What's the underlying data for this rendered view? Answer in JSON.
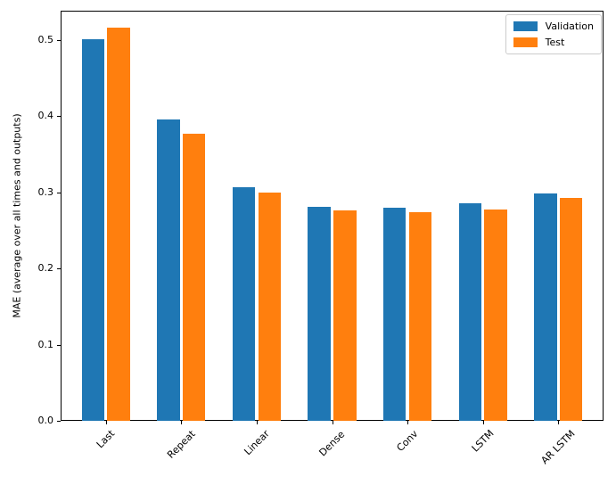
{
  "figure": {
    "background": "#ffffff",
    "axis_color": "#000000"
  },
  "chart_data": {
    "type": "bar",
    "title": "",
    "xlabel": "",
    "ylabel": "MAE (average over all times and outputs)",
    "categories": [
      "Last",
      "Repeat",
      "Linear",
      "Dense",
      "Conv",
      "LSTM",
      "AR LSTM"
    ],
    "series": [
      {
        "name": "Validation",
        "color": "#1f77b4",
        "values": [
          0.501,
          0.395,
          0.306,
          0.281,
          0.28,
          0.286,
          0.298
        ]
      },
      {
        "name": "Test",
        "color": "#ff7f0e",
        "values": [
          0.516,
          0.377,
          0.299,
          0.276,
          0.274,
          0.277,
          0.292
        ]
      }
    ],
    "yticks": [
      0.0,
      0.1,
      0.2,
      0.3,
      0.4,
      0.5
    ],
    "ylim": [
      0,
      0.538
    ],
    "xtick_rotation": 45,
    "grid": false,
    "bar_width": 0.3,
    "group_offset": 0.17,
    "axis_color": "#000000",
    "legend": {
      "position": "upper right",
      "border_color": "#cccccc",
      "entries": [
        "Validation",
        "Test"
      ]
    }
  }
}
